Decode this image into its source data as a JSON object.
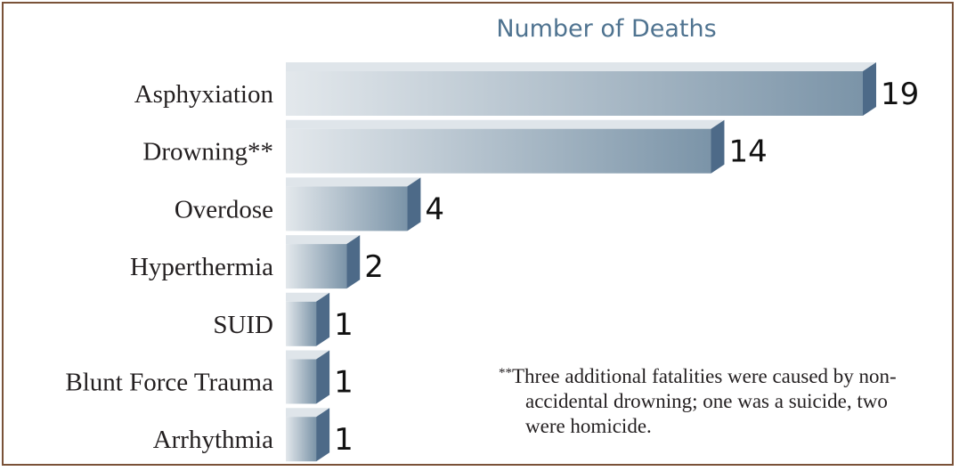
{
  "chart_data": {
    "type": "bar",
    "orientation": "horizontal",
    "title": "Number of Deaths",
    "categories": [
      "Asphyxiation",
      "Drowning**",
      "Overdose",
      "Hyperthermia",
      "SUID",
      "Blunt Force Trauma",
      "Arrhythmia"
    ],
    "values": [
      19,
      14,
      4,
      2,
      1,
      1,
      1
    ],
    "data_labels": [
      "19",
      "14",
      "4",
      "2",
      "1",
      "1",
      "1"
    ],
    "xlim": [
      0,
      19
    ],
    "grid": false,
    "legend": "none",
    "colors": {
      "bar_light": "#e3e8ec",
      "bar_dark": "#7b94a8",
      "bar_side": "#4d6a88",
      "bar_top": "#dfe5ea",
      "title": "#4f7390",
      "border": "#7a5238"
    }
  },
  "footnote": {
    "mark": "**",
    "line1": "Three additional fatalities were caused by non-",
    "line2": "accidental drowning; one was a suicide, two",
    "line3": "were homicide."
  }
}
